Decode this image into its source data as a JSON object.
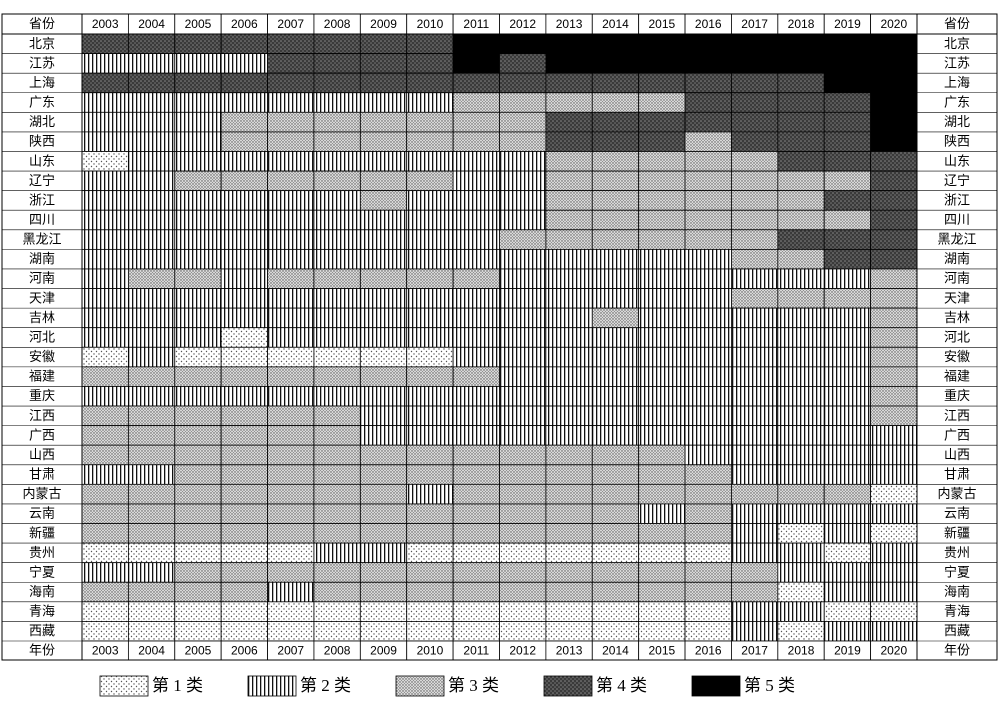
{
  "table": {
    "corner_top": "省份",
    "corner_bottom": "年份",
    "years": [
      "2003",
      "2004",
      "2005",
      "2006",
      "2007",
      "2008",
      "2009",
      "2010",
      "2011",
      "2012",
      "2013",
      "2014",
      "2015",
      "2016",
      "2017",
      "2018",
      "2019",
      "2020"
    ],
    "provinces": [
      "北京",
      "江苏",
      "上海",
      "广东",
      "湖北",
      "陕西",
      "山东",
      "辽宁",
      "浙江",
      "四川",
      "黑龙江",
      "湖南",
      "河南",
      "天津",
      "吉林",
      "河北",
      "安徽",
      "福建",
      "重庆",
      "江西",
      "广西",
      "山西",
      "甘肃",
      "内蒙古",
      "云南",
      "新疆",
      "贵州",
      "宁夏",
      "海南",
      "青海",
      "西藏"
    ],
    "classes": [
      [
        4,
        4,
        4,
        4,
        4,
        4,
        4,
        4,
        5,
        5,
        5,
        5,
        5,
        5,
        5,
        5,
        5,
        5
      ],
      [
        2,
        2,
        2,
        2,
        4,
        4,
        4,
        4,
        5,
        4,
        5,
        5,
        5,
        5,
        5,
        5,
        5,
        5
      ],
      [
        4,
        4,
        4,
        4,
        4,
        4,
        4,
        4,
        4,
        4,
        4,
        4,
        4,
        4,
        4,
        4,
        5,
        5
      ],
      [
        2,
        2,
        2,
        2,
        2,
        2,
        2,
        2,
        3,
        3,
        3,
        3,
        3,
        4,
        4,
        4,
        4,
        5
      ],
      [
        2,
        2,
        2,
        3,
        3,
        3,
        3,
        3,
        3,
        3,
        4,
        4,
        4,
        4,
        4,
        4,
        4,
        5
      ],
      [
        2,
        2,
        2,
        3,
        3,
        3,
        3,
        3,
        3,
        3,
        4,
        4,
        4,
        3,
        4,
        4,
        4,
        5
      ],
      [
        1,
        2,
        2,
        2,
        2,
        2,
        2,
        2,
        2,
        2,
        3,
        3,
        3,
        3,
        3,
        4,
        4,
        4
      ],
      [
        2,
        2,
        3,
        3,
        3,
        3,
        3,
        3,
        2,
        2,
        3,
        3,
        3,
        3,
        3,
        3,
        3,
        4
      ],
      [
        2,
        2,
        2,
        2,
        2,
        2,
        3,
        2,
        2,
        2,
        3,
        3,
        3,
        3,
        3,
        3,
        4,
        4
      ],
      [
        2,
        2,
        2,
        2,
        2,
        2,
        2,
        2,
        2,
        2,
        3,
        3,
        3,
        3,
        3,
        3,
        3,
        4
      ],
      [
        2,
        2,
        2,
        2,
        2,
        2,
        2,
        2,
        2,
        3,
        3,
        3,
        3,
        3,
        3,
        4,
        4,
        4
      ],
      [
        2,
        2,
        2,
        2,
        2,
        2,
        2,
        2,
        2,
        2,
        2,
        2,
        2,
        2,
        3,
        3,
        4,
        4
      ],
      [
        2,
        3,
        3,
        2,
        3,
        3,
        3,
        3,
        3,
        2,
        2,
        2,
        2,
        2,
        2,
        2,
        2,
        3
      ],
      [
        2,
        2,
        2,
        2,
        2,
        2,
        2,
        2,
        2,
        2,
        2,
        2,
        2,
        2,
        3,
        3,
        3,
        3
      ],
      [
        2,
        2,
        2,
        2,
        2,
        2,
        2,
        2,
        2,
        2,
        2,
        3,
        2,
        2,
        2,
        2,
        2,
        3
      ],
      [
        2,
        2,
        2,
        1,
        2,
        2,
        2,
        2,
        2,
        2,
        2,
        2,
        2,
        2,
        2,
        2,
        2,
        3
      ],
      [
        1,
        2,
        1,
        1,
        1,
        1,
        1,
        1,
        2,
        2,
        2,
        2,
        2,
        2,
        2,
        2,
        2,
        3
      ],
      [
        3,
        3,
        3,
        3,
        3,
        3,
        3,
        3,
        3,
        2,
        2,
        2,
        2,
        2,
        2,
        2,
        2,
        3
      ],
      [
        2,
        2,
        2,
        2,
        2,
        2,
        2,
        2,
        2,
        2,
        2,
        2,
        2,
        2,
        2,
        2,
        2,
        3
      ],
      [
        3,
        3,
        3,
        3,
        3,
        3,
        2,
        2,
        2,
        2,
        2,
        2,
        2,
        2,
        2,
        2,
        2,
        3
      ],
      [
        3,
        3,
        3,
        3,
        3,
        3,
        2,
        2,
        2,
        2,
        2,
        2,
        2,
        2,
        2,
        2,
        2,
        2
      ],
      [
        3,
        3,
        3,
        3,
        3,
        3,
        3,
        3,
        3,
        3,
        3,
        3,
        3,
        2,
        2,
        2,
        2,
        2
      ],
      [
        2,
        2,
        3,
        3,
        3,
        3,
        3,
        3,
        3,
        3,
        3,
        3,
        3,
        3,
        2,
        2,
        2,
        2
      ],
      [
        3,
        3,
        3,
        3,
        3,
        3,
        3,
        2,
        3,
        3,
        3,
        3,
        3,
        3,
        3,
        3,
        3,
        1
      ],
      [
        3,
        3,
        3,
        3,
        3,
        3,
        3,
        3,
        3,
        3,
        3,
        3,
        2,
        3,
        2,
        2,
        2,
        2
      ],
      [
        3,
        3,
        3,
        3,
        3,
        3,
        3,
        3,
        3,
        3,
        3,
        3,
        3,
        3,
        2,
        1,
        2,
        1
      ],
      [
        1,
        1,
        1,
        1,
        1,
        2,
        2,
        1,
        1,
        1,
        1,
        1,
        1,
        1,
        2,
        2,
        1,
        2
      ],
      [
        2,
        2,
        3,
        3,
        3,
        3,
        3,
        3,
        3,
        3,
        3,
        3,
        3,
        3,
        3,
        2,
        2,
        2
      ],
      [
        3,
        3,
        3,
        3,
        2,
        3,
        3,
        3,
        3,
        3,
        3,
        3,
        3,
        3,
        3,
        1,
        2,
        2
      ],
      [
        1,
        1,
        1,
        1,
        1,
        1,
        1,
        1,
        1,
        1,
        1,
        1,
        1,
        1,
        2,
        2,
        1,
        1
      ],
      [
        1,
        1,
        1,
        1,
        1,
        1,
        1,
        1,
        1,
        1,
        1,
        1,
        1,
        1,
        2,
        1,
        2,
        2
      ]
    ]
  },
  "legend": [
    "第 1 类",
    "第 2 类",
    "第 3 类",
    "第 4 类",
    "第 5 类"
  ]
}
